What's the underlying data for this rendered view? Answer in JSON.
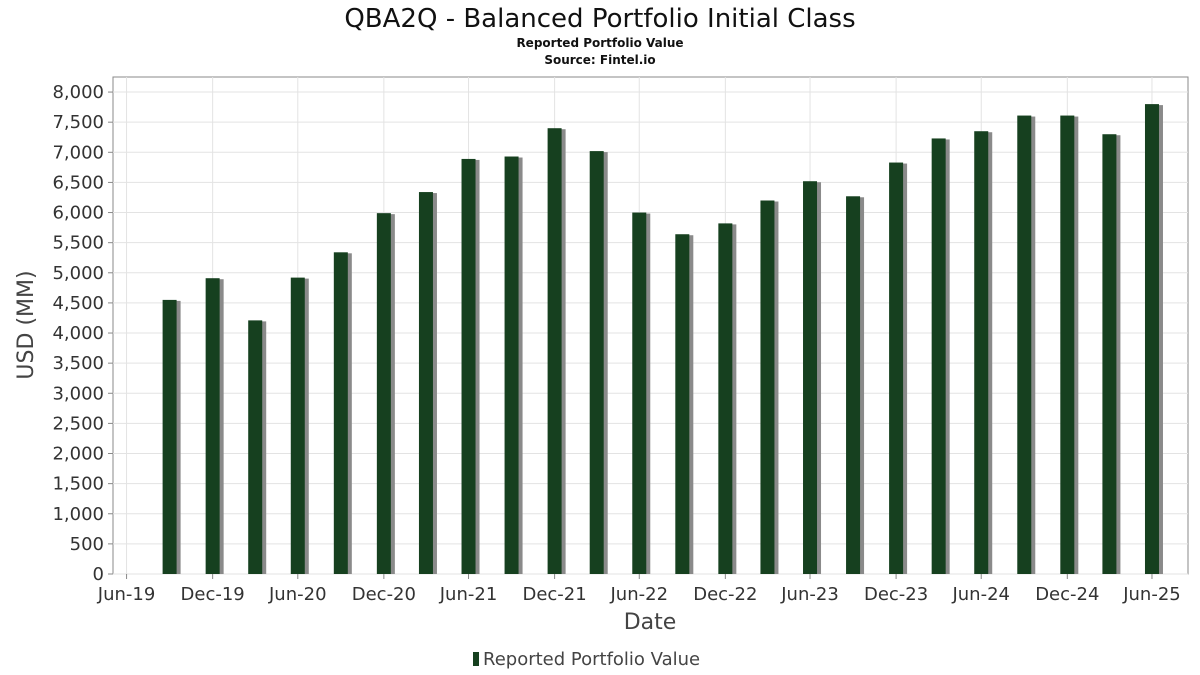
{
  "chart_data": {
    "type": "bar",
    "title": "QBA2Q - Balanced Portfolio Initial Class",
    "subtitle": "Reported Portfolio Value",
    "source": "Source: Fintel.io",
    "xlabel": "Date",
    "ylabel": "USD (MM)",
    "ylim": [
      0,
      8250
    ],
    "yticks": [
      0,
      500,
      1000,
      1500,
      2000,
      2500,
      3000,
      3500,
      4000,
      4500,
      5000,
      5500,
      6000,
      6500,
      7000,
      7500,
      8000
    ],
    "ytick_labels": [
      "0",
      "500",
      "1,000",
      "1,500",
      "2,000",
      "2,500",
      "3,000",
      "3,500",
      "4,000",
      "4,500",
      "5,000",
      "5,500",
      "6,000",
      "6,500",
      "7,000",
      "7,500",
      "8,000"
    ],
    "xlim": [
      "2019-06-01",
      "2025-09-15"
    ],
    "xticks": [
      "2019-06-30",
      "2019-12-31",
      "2020-06-30",
      "2020-12-31",
      "2021-06-30",
      "2021-12-31",
      "2022-06-30",
      "2022-12-31",
      "2023-06-30",
      "2023-12-31",
      "2024-06-30",
      "2024-12-31",
      "2025-06-30"
    ],
    "xtick_labels": [
      "Jun-19",
      "Dec-19",
      "Jun-20",
      "Dec-20",
      "Jun-21",
      "Dec-21",
      "Jun-22",
      "Dec-22",
      "Jun-23",
      "Dec-23",
      "Jun-24",
      "Dec-24",
      "Jun-25"
    ],
    "grid": true,
    "legend": "bottom-center",
    "series": [
      {
        "name": "Reported Portfolio Value",
        "color": "#16401f",
        "x": [
          "2019-09-30",
          "2019-12-31",
          "2020-03-31",
          "2020-06-30",
          "2020-09-30",
          "2020-12-31",
          "2021-03-31",
          "2021-06-30",
          "2021-09-30",
          "2021-12-31",
          "2022-03-31",
          "2022-06-30",
          "2022-09-30",
          "2022-12-31",
          "2023-03-31",
          "2023-06-30",
          "2023-09-30",
          "2023-12-31",
          "2024-03-31",
          "2024-06-30",
          "2024-09-30",
          "2024-12-31",
          "2025-03-31",
          "2025-06-30"
        ],
        "values": [
          4550,
          4910,
          4210,
          4920,
          5340,
          5990,
          6340,
          6890,
          6930,
          7400,
          7020,
          6000,
          5640,
          5820,
          6200,
          6520,
          6270,
          6830,
          7230,
          7350,
          7610,
          7610,
          7300,
          7800
        ]
      }
    ]
  }
}
